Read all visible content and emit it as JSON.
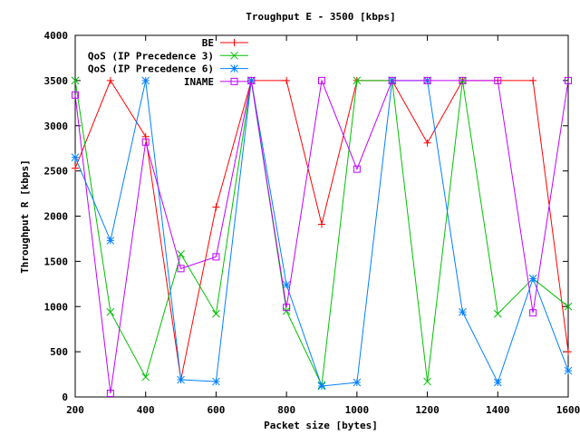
{
  "chart_data": {
    "type": "line",
    "title": "Troughput E - 3500 [kbps]",
    "xlabel": "Packet size [bytes]",
    "ylabel": "Throughput R [kbps]",
    "xlim": [
      200,
      1600
    ],
    "ylim": [
      0,
      4000
    ],
    "xticks": [
      200,
      400,
      600,
      800,
      1000,
      1200,
      1400,
      1600
    ],
    "yticks": [
      0,
      500,
      1000,
      1500,
      2000,
      2500,
      3000,
      3500,
      4000
    ],
    "grid": false,
    "legend_position": "top-right",
    "x": [
      200,
      300,
      400,
      500,
      600,
      700,
      800,
      900,
      1000,
      1100,
      1200,
      1300,
      1400,
      1500,
      1600
    ],
    "series": [
      {
        "name": "BE",
        "color": "#ff0000",
        "marker": "plus",
        "values": [
          2530,
          3500,
          2880,
          190,
          2100,
          3500,
          3500,
          1910,
          3500,
          3500,
          2810,
          3500,
          3500,
          3500,
          500
        ]
      },
      {
        "name": "QoS (IP Precedence 3)",
        "color": "#00c000",
        "marker": "cross",
        "values": [
          3500,
          940,
          220,
          1580,
          920,
          3500,
          950,
          130,
          3500,
          3500,
          170,
          3500,
          920,
          1310,
          1000
        ]
      },
      {
        "name": "QoS (IP Precedence 6)",
        "color": "#0080ff",
        "marker": "star",
        "values": [
          2650,
          1730,
          3500,
          190,
          170,
          3500,
          1240,
          120,
          160,
          3500,
          3500,
          940,
          160,
          1310,
          290
        ]
      },
      {
        "name": "INAME",
        "color": "#c000ff",
        "marker": "square",
        "values": [
          3340,
          40,
          2820,
          1420,
          1550,
          3500,
          990,
          3500,
          2520,
          3500,
          3500,
          3500,
          3500,
          930,
          3500
        ]
      }
    ]
  }
}
